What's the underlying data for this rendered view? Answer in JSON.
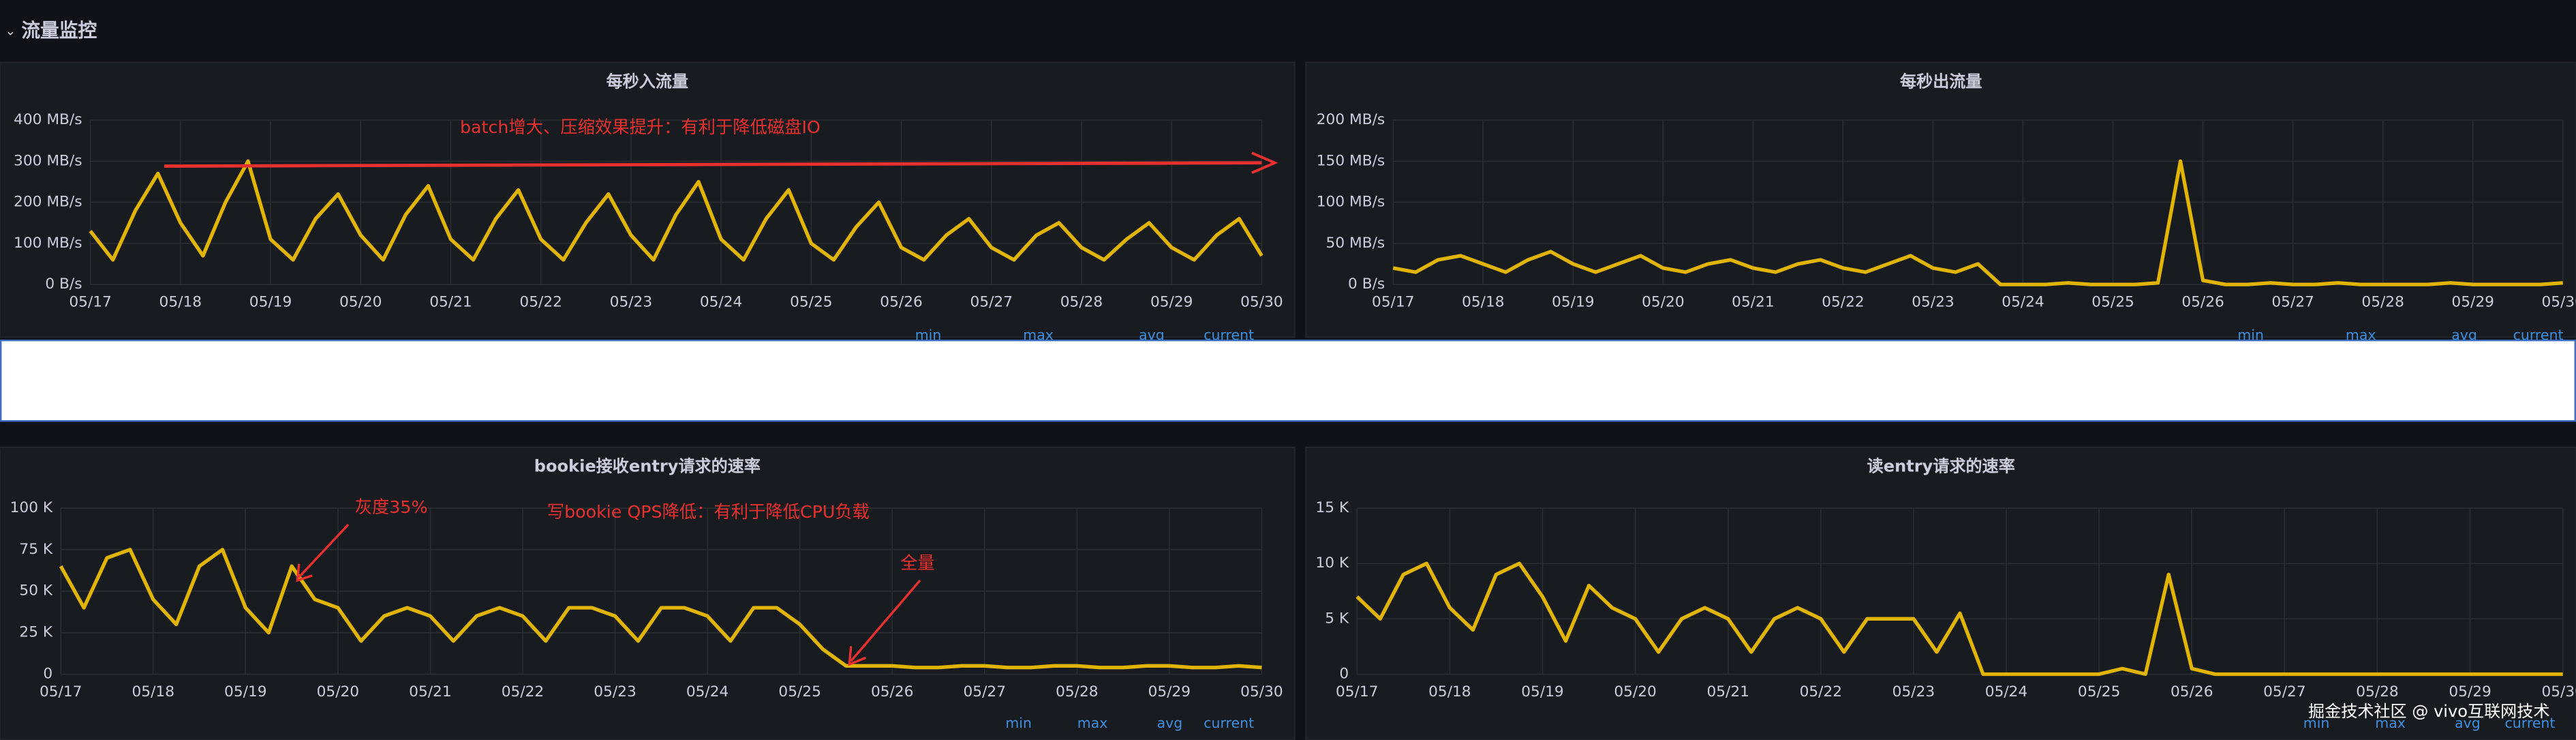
{
  "header": {
    "title": "流量监控"
  },
  "watermark": "掘金技术社区 @ vivo互联网技术",
  "chart_data": [
    {
      "type": "line",
      "title": "每秒入流量",
      "color": "#e0b400",
      "annotations": [
        "batch增大、压缩效果提升：有利于降低磁盘IO"
      ],
      "legend_columns": [
        "min",
        "max",
        "avg",
        "current"
      ],
      "x": [
        0,
        0.25,
        0.5,
        0.75,
        1,
        1.25,
        1.5,
        1.75,
        2,
        2.25,
        2.5,
        2.75,
        3,
        3.25,
        3.5,
        3.75,
        4,
        4.25,
        4.5,
        4.75,
        5,
        5.25,
        5.5,
        5.75,
        6,
        6.25,
        6.5,
        6.75,
        7,
        7.25,
        7.5,
        7.75,
        8,
        8.25,
        8.5,
        8.75,
        9,
        9.25,
        9.5,
        9.75,
        10,
        10.25,
        10.5,
        10.75,
        11,
        11.25,
        11.5,
        11.75,
        12,
        12.25,
        12.5,
        12.75,
        13
      ],
      "values": [
        130,
        60,
        180,
        270,
        150,
        70,
        200,
        300,
        110,
        60,
        160,
        220,
        120,
        60,
        170,
        240,
        110,
        60,
        160,
        230,
        110,
        60,
        150,
        220,
        120,
        60,
        170,
        250,
        110,
        60,
        160,
        230,
        100,
        60,
        140,
        200,
        90,
        60,
        120,
        160,
        90,
        60,
        120,
        150,
        90,
        60,
        110,
        150,
        90,
        60,
        120,
        160,
        70
      ],
      "xlim": [
        0,
        13
      ],
      "xticks": [
        {
          "value": 0,
          "label": "05/17"
        },
        {
          "value": 1,
          "label": "05/18"
        },
        {
          "value": 2,
          "label": "05/19"
        },
        {
          "value": 3,
          "label": "05/20"
        },
        {
          "value": 4,
          "label": "05/21"
        },
        {
          "value": 5,
          "label": "05/22"
        },
        {
          "value": 6,
          "label": "05/23"
        },
        {
          "value": 7,
          "label": "05/24"
        },
        {
          "value": 8,
          "label": "05/25"
        },
        {
          "value": 9,
          "label": "05/26"
        },
        {
          "value": 10,
          "label": "05/27"
        },
        {
          "value": 11,
          "label": "05/28"
        },
        {
          "value": 12,
          "label": "05/29"
        },
        {
          "value": 13,
          "label": "05/30"
        }
      ],
      "ylim": [
        0,
        400
      ],
      "yticks": [
        {
          "value": 0,
          "label": "0 B/s"
        },
        {
          "value": 100,
          "label": "100 MB/s"
        },
        {
          "value": 200,
          "label": "200 MB/s"
        },
        {
          "value": 300,
          "label": "300 MB/s"
        },
        {
          "value": 400,
          "label": "400 MB/s"
        }
      ],
      "grid": true
    },
    {
      "type": "line",
      "title": "每秒出流量",
      "color": "#e0b400",
      "annotations": [],
      "legend_columns": [
        "min",
        "max",
        "avg",
        "current"
      ],
      "x": [
        0,
        0.25,
        0.5,
        0.75,
        1,
        1.25,
        1.5,
        1.75,
        2,
        2.25,
        2.5,
        2.75,
        3,
        3.25,
        3.5,
        3.75,
        4,
        4.25,
        4.5,
        4.75,
        5,
        5.25,
        5.5,
        5.75,
        6,
        6.25,
        6.5,
        6.75,
        7,
        7.25,
        7.5,
        7.75,
        8,
        8.25,
        8.5,
        8.75,
        9,
        9.25,
        9.5,
        9.75,
        10,
        10.25,
        10.5,
        10.75,
        11,
        11.25,
        11.5,
        11.75,
        12,
        12.25,
        12.5,
        12.75,
        13
      ],
      "values": [
        20,
        15,
        30,
        35,
        25,
        15,
        30,
        40,
        25,
        15,
        25,
        35,
        20,
        15,
        25,
        30,
        20,
        15,
        25,
        30,
        20,
        15,
        25,
        35,
        20,
        15,
        25,
        0,
        0,
        0,
        2,
        0,
        0,
        0,
        2,
        150,
        5,
        0,
        0,
        2,
        0,
        0,
        2,
        0,
        0,
        0,
        0,
        2,
        0,
        0,
        0,
        0,
        2
      ],
      "xlim": [
        0,
        13
      ],
      "xticks": [
        {
          "value": 0,
          "label": "05/17"
        },
        {
          "value": 1,
          "label": "05/18"
        },
        {
          "value": 2,
          "label": "05/19"
        },
        {
          "value": 3,
          "label": "05/20"
        },
        {
          "value": 4,
          "label": "05/21"
        },
        {
          "value": 5,
          "label": "05/22"
        },
        {
          "value": 6,
          "label": "05/23"
        },
        {
          "value": 7,
          "label": "05/24"
        },
        {
          "value": 8,
          "label": "05/25"
        },
        {
          "value": 9,
          "label": "05/26"
        },
        {
          "value": 10,
          "label": "05/27"
        },
        {
          "value": 11,
          "label": "05/28"
        },
        {
          "value": 12,
          "label": "05/29"
        },
        {
          "value": 13,
          "label": "05/30"
        }
      ],
      "ylim": [
        0,
        200
      ],
      "yticks": [
        {
          "value": 0,
          "label": "0 B/s"
        },
        {
          "value": 50,
          "label": "50 MB/s"
        },
        {
          "value": 100,
          "label": "100 MB/s"
        },
        {
          "value": 150,
          "label": "150 MB/s"
        },
        {
          "value": 200,
          "label": "200 MB/s"
        }
      ],
      "grid": true
    },
    {
      "type": "line",
      "title": "bookie接收entry请求的速率",
      "color": "#e0b400",
      "annotations": [
        "灰度35%",
        "写bookie QPS降低：有利于降低CPU负载",
        "全量"
      ],
      "legend_columns": [
        "min",
        "max",
        "avg",
        "current"
      ],
      "x": [
        0,
        0.25,
        0.5,
        0.75,
        1,
        1.25,
        1.5,
        1.75,
        2,
        2.25,
        2.5,
        2.75,
        3,
        3.25,
        3.5,
        3.75,
        4,
        4.25,
        4.5,
        4.75,
        5,
        5.25,
        5.5,
        5.75,
        6,
        6.25,
        6.5,
        6.75,
        7,
        7.25,
        7.5,
        7.75,
        8,
        8.25,
        8.5,
        8.75,
        9,
        9.25,
        9.5,
        9.75,
        10,
        10.25,
        10.5,
        10.75,
        11,
        11.25,
        11.5,
        11.75,
        12,
        12.25,
        12.5,
        12.75,
        13
      ],
      "values": [
        65000,
        40000,
        70000,
        75000,
        45000,
        30000,
        65000,
        75000,
        40000,
        25000,
        65000,
        45000,
        40000,
        20000,
        35000,
        40000,
        35000,
        20000,
        35000,
        40000,
        35000,
        20000,
        40000,
        40000,
        35000,
        20000,
        40000,
        40000,
        35000,
        20000,
        40000,
        40000,
        30000,
        15000,
        5000,
        5000,
        5000,
        4000,
        4000,
        5000,
        5000,
        4000,
        4000,
        5000,
        5000,
        4000,
        4000,
        5000,
        5000,
        4000,
        4000,
        5000,
        4000
      ],
      "xlim": [
        0,
        13
      ],
      "xticks": [
        {
          "value": 0,
          "label": "05/17"
        },
        {
          "value": 1,
          "label": "05/18"
        },
        {
          "value": 2,
          "label": "05/19"
        },
        {
          "value": 3,
          "label": "05/20"
        },
        {
          "value": 4,
          "label": "05/21"
        },
        {
          "value": 5,
          "label": "05/22"
        },
        {
          "value": 6,
          "label": "05/23"
        },
        {
          "value": 7,
          "label": "05/24"
        },
        {
          "value": 8,
          "label": "05/25"
        },
        {
          "value": 9,
          "label": "05/26"
        },
        {
          "value": 10,
          "label": "05/27"
        },
        {
          "value": 11,
          "label": "05/28"
        },
        {
          "value": 12,
          "label": "05/29"
        },
        {
          "value": 13,
          "label": "05/30"
        }
      ],
      "ylim": [
        0,
        100000
      ],
      "yticks": [
        0,
        {
          "value": 25000,
          "label": "25 K"
        },
        {
          "value": 50000,
          "label": "50 K"
        },
        {
          "value": 75000,
          "label": "75 K"
        },
        {
          "value": 100000,
          "label": "100 K"
        }
      ],
      "grid": true
    },
    {
      "type": "line",
      "title": "读entry请求的速率",
      "color": "#e0b400",
      "annotations": [],
      "legend_columns": [
        "min",
        "max",
        "avg",
        "current"
      ],
      "x": [
        0,
        0.25,
        0.5,
        0.75,
        1,
        1.25,
        1.5,
        1.75,
        2,
        2.25,
        2.5,
        2.75,
        3,
        3.25,
        3.5,
        3.75,
        4,
        4.25,
        4.5,
        4.75,
        5,
        5.25,
        5.5,
        5.75,
        6,
        6.25,
        6.5,
        6.75,
        7,
        7.25,
        7.5,
        7.75,
        8,
        8.25,
        8.5,
        8.75,
        9,
        9.25,
        9.5,
        9.75,
        10,
        10.25,
        10.5,
        10.75,
        11,
        11.25,
        11.5,
        11.75,
        12,
        12.25,
        12.5,
        12.75,
        13
      ],
      "values": [
        7000,
        5000,
        9000,
        10000,
        6000,
        4000,
        9000,
        10000,
        7000,
        3000,
        8000,
        6000,
        5000,
        2000,
        5000,
        6000,
        5000,
        2000,
        5000,
        6000,
        5000,
        2000,
        5000,
        5000,
        5000,
        2000,
        5500,
        0,
        0,
        0,
        0,
        0,
        0,
        500,
        0,
        9000,
        500,
        0,
        0,
        0,
        0,
        0,
        0,
        0,
        0,
        0,
        0,
        0,
        0,
        0,
        0,
        0,
        0
      ],
      "xlim": [
        0,
        13
      ],
      "xticks": [
        {
          "value": 0,
          "label": "05/17"
        },
        {
          "value": 1,
          "label": "05/18"
        },
        {
          "value": 2,
          "label": "05/19"
        },
        {
          "value": 3,
          "label": "05/20"
        },
        {
          "value": 4,
          "label": "05/21"
        },
        {
          "value": 5,
          "label": "05/22"
        },
        {
          "value": 6,
          "label": "05/23"
        },
        {
          "value": 7,
          "label": "05/24"
        },
        {
          "value": 8,
          "label": "05/25"
        },
        {
          "value": 9,
          "label": "05/26"
        },
        {
          "value": 10,
          "label": "05/27"
        },
        {
          "value": 11,
          "label": "05/28"
        },
        {
          "value": 12,
          "label": "05/29"
        },
        {
          "value": 13,
          "label": "05/30"
        }
      ],
      "ylim": [
        0,
        15000
      ],
      "yticks": [
        0,
        {
          "value": 5000,
          "label": "5 K"
        },
        {
          "value": 10000,
          "label": "10 K"
        },
        {
          "value": 15000,
          "label": "15 K"
        }
      ],
      "grid": true
    }
  ]
}
